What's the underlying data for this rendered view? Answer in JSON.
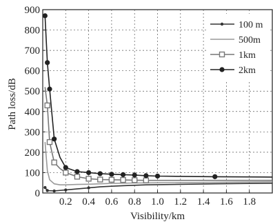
{
  "chart_data": {
    "type": "line",
    "title": "",
    "xlabel": "Visibility/km",
    "ylabel": "Path  loss/dB",
    "xlim": [
      0,
      2.0
    ],
    "ylim": [
      0,
      900
    ],
    "xticks": [
      0.2,
      0.4,
      0.6,
      0.8,
      1.0,
      1.2,
      1.4,
      1.6,
      1.8
    ],
    "xtick_labels": [
      "0.2",
      "0.4",
      "0.6",
      "0.8",
      "1.0",
      "1.2",
      "1.4",
      "1.6",
      "1.8"
    ],
    "yticks": [
      0,
      100,
      200,
      300,
      400,
      500,
      600,
      700,
      800,
      900
    ],
    "ytick_labels": [
      "0",
      "100",
      "200",
      "300",
      "400",
      "500",
      "600",
      "700",
      "800",
      "900"
    ],
    "grid": true,
    "legend_position": "top-right",
    "series": [
      {
        "name": "100 m",
        "marker": "small-dot",
        "color": "#333333",
        "x": [
          0.02,
          0.04,
          0.1,
          0.2,
          0.3,
          0.4,
          0.5,
          0.6,
          0.7,
          0.8,
          0.9,
          1.0,
          1.5,
          2.0
        ],
        "y": [
          27,
          12,
          10,
          15,
          20,
          25,
          30,
          33,
          36,
          38,
          40,
          41,
          45,
          48
        ],
        "marker_x": [
          0.02,
          0.04,
          0.1,
          0.2,
          0.4
        ]
      },
      {
        "name": "500m",
        "marker": "none",
        "color": "#999999",
        "x": [
          0.02,
          0.04,
          0.06,
          0.1,
          0.15,
          0.2,
          0.3,
          0.4,
          0.5,
          0.6,
          0.8,
          1.0,
          1.5,
          2.0
        ],
        "y": [
          250,
          110,
          65,
          45,
          40,
          40,
          42,
          43,
          45,
          47,
          49,
          50,
          52,
          55
        ],
        "marker_x": []
      },
      {
        "name": "1km",
        "marker": "square",
        "color": "#777777",
        "x": [
          0.02,
          0.04,
          0.06,
          0.1,
          0.15,
          0.2,
          0.3,
          0.4,
          0.5,
          0.6,
          0.7,
          0.8,
          0.9,
          1.0,
          1.5,
          2.0
        ],
        "y": [
          520,
          430,
          250,
          150,
          120,
          100,
          80,
          70,
          66,
          65,
          64,
          63,
          62,
          62,
          62,
          62
        ],
        "marker_x": [
          0.04,
          0.06,
          0.1,
          0.2,
          0.3,
          0.4,
          0.5,
          0.6,
          0.7,
          0.8,
          0.9
        ]
      },
      {
        "name": "2km",
        "marker": "big-dot",
        "color": "#222222",
        "x": [
          0.02,
          0.04,
          0.06,
          0.1,
          0.15,
          0.2,
          0.3,
          0.4,
          0.5,
          0.6,
          0.7,
          0.8,
          0.9,
          1.0,
          1.5,
          2.0
        ],
        "y": [
          870,
          640,
          510,
          265,
          175,
          125,
          105,
          100,
          95,
          92,
          90,
          88,
          85,
          83,
          80,
          78
        ],
        "marker_x": [
          0.02,
          0.04,
          0.06,
          0.1,
          0.2,
          0.3,
          0.4,
          0.5,
          0.6,
          0.7,
          0.8,
          0.9,
          1.0,
          1.5
        ]
      }
    ]
  }
}
